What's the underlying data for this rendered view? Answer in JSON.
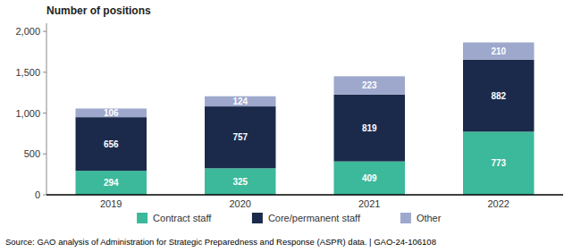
{
  "chart_data": {
    "type": "bar",
    "stacked": true,
    "title": "Number of positions",
    "categories": [
      "2019",
      "2020",
      "2021",
      "2022"
    ],
    "series": [
      {
        "name": "Contract staff",
        "color": "#3cb89a",
        "values": [
          294,
          325,
          409,
          773
        ]
      },
      {
        "name": "Core/permanent staff",
        "color": "#1b2a4a",
        "values": [
          656,
          757,
          819,
          882
        ]
      },
      {
        "name": "Other",
        "color": "#9da8cc",
        "values": [
          106,
          124,
          223,
          210
        ]
      }
    ],
    "ylim": [
      0,
      2100
    ],
    "yticks": [
      0,
      500,
      {
        "value": 1000,
        "label": "1,000"
      },
      {
        "value": 1500,
        "label": "1,500"
      },
      {
        "value": 2000,
        "label": "2,000"
      }
    ],
    "grid": false,
    "legend": "bottom",
    "data_labels": true,
    "source": "Source: GAO analysis of Administration for Strategic Preparedness and Response (ASPR) data.  |  GAO-24-106108"
  }
}
